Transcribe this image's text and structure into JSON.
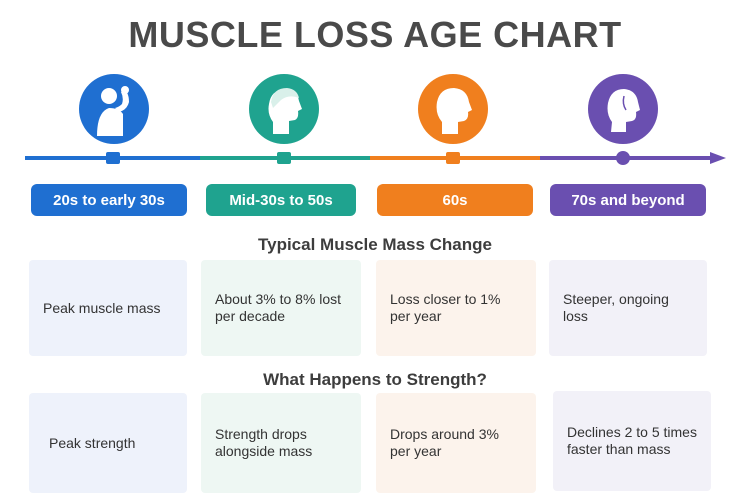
{
  "title": "MUSCLE LOSS AGE CHART",
  "colors": {
    "blue": "#1f6fd1",
    "teal": "#1fa38f",
    "orange": "#f07f1e",
    "purple": "#6a4fb0"
  },
  "stages": [
    {
      "label": "20s to early 30s",
      "icon": "flexing-arm-person-icon"
    },
    {
      "label": "Mid-30s to 50s",
      "icon": "head-profile-icon"
    },
    {
      "label": "60s",
      "icon": "bald-head-profile-icon"
    },
    {
      "label": "70s and beyond",
      "icon": "elderly-profile-icon"
    }
  ],
  "sections": {
    "mass_title": "Typical Muscle Mass Change",
    "strength_title": "What Happens to Strength?"
  },
  "mass": [
    "Peak muscle mass",
    "About 3% to 8% lost per decade",
    "Loss closer to 1% per year",
    "Steeper, ongoing loss"
  ],
  "strength": [
    "Peak strength",
    "Strength drops alongside mass",
    "Drops around 3% per year",
    "Declines 2 to 5 times faster than mass"
  ]
}
